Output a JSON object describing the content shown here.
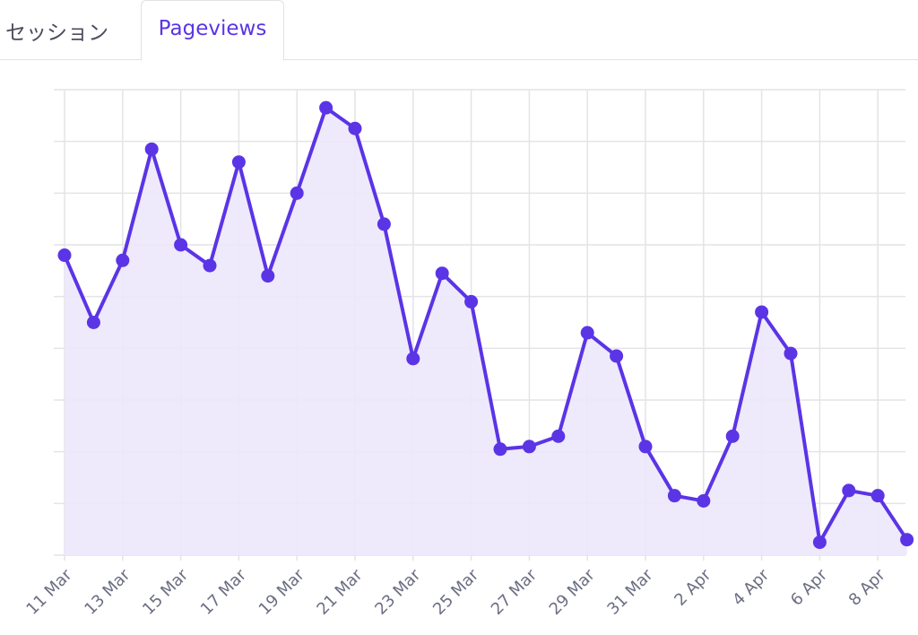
{
  "tabs": [
    {
      "label": "セッション",
      "active": false
    },
    {
      "label": "Pageviews",
      "active": true
    }
  ],
  "colors": {
    "accent": "#5b34e6",
    "fill": "#ece8fb",
    "grid": "#e4e4e8",
    "tick_label": "#6b6e82"
  },
  "chart_data": {
    "type": "area",
    "title": "",
    "xlabel": "",
    "ylabel": "",
    "grid": true,
    "ylim": [
      0,
      9
    ],
    "x": [
      "11 Mar",
      "12 Mar",
      "13 Mar",
      "14 Mar",
      "15 Mar",
      "16 Mar",
      "17 Mar",
      "18 Mar",
      "19 Mar",
      "20 Mar",
      "21 Mar",
      "22 Mar",
      "23 Mar",
      "24 Mar",
      "25 Mar",
      "26 Mar",
      "27 Mar",
      "28 Mar",
      "29 Mar",
      "30 Mar",
      "31 Mar",
      "1 Apr",
      "2 Apr",
      "3 Apr",
      "4 Apr",
      "5 Apr",
      "6 Apr",
      "7 Apr",
      "8 Apr",
      "9 Apr"
    ],
    "x_tick_labels": [
      "11 Mar",
      "13 Mar",
      "15 Mar",
      "17 Mar",
      "19 Mar",
      "21 Mar",
      "23 Mar",
      "25 Mar",
      "27 Mar",
      "29 Mar",
      "31 Mar",
      "2 Apr",
      "4 Apr",
      "6 Apr",
      "8 Apr"
    ],
    "series": [
      {
        "values": [
          5.8,
          4.5,
          5.7,
          7.85,
          6.0,
          5.6,
          7.6,
          5.4,
          7.0,
          8.65,
          8.25,
          6.4,
          3.8,
          5.45,
          4.9,
          2.05,
          2.1,
          2.3,
          4.3,
          3.85,
          2.1,
          1.15,
          1.05,
          2.3,
          4.7,
          3.9,
          0.25,
          1.25,
          1.15,
          0.3
        ]
      }
    ]
  }
}
